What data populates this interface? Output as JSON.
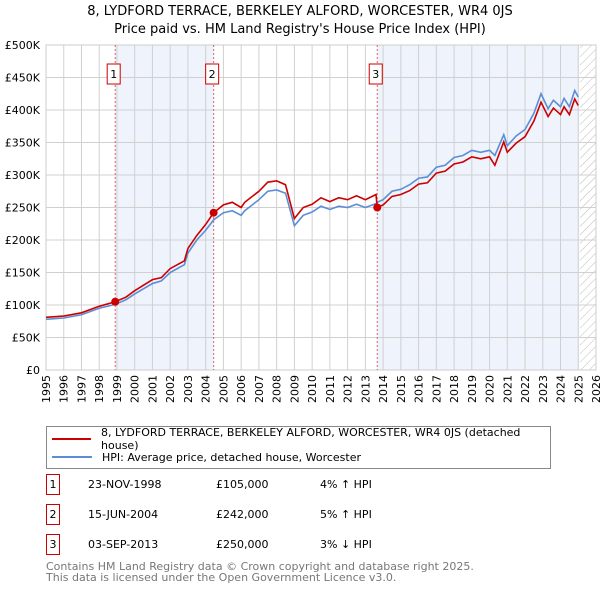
{
  "chart_data": {
    "type": "line",
    "title": "8, LYDFORD TERRACE, BERKELEY ALFORD, WORCESTER, WR4 0JS",
    "subtitle": "Price paid vs. HM Land Registry's House Price Index (HPI)",
    "xlim": [
      1995,
      2026
    ],
    "ylim": [
      0,
      500000
    ],
    "grid": true,
    "x_ticks": [
      "1995",
      "1996",
      "1997",
      "1998",
      "1999",
      "2000",
      "2001",
      "2002",
      "2003",
      "2004",
      "2005",
      "2006",
      "2007",
      "2008",
      "2009",
      "2010",
      "2011",
      "2012",
      "2013",
      "2014",
      "2015",
      "2016",
      "2017",
      "2018",
      "2019",
      "2020",
      "2021",
      "2022",
      "2023",
      "2024",
      "2025",
      "2026"
    ],
    "y_ticks": [
      {
        "v": 0,
        "label": "£0"
      },
      {
        "v": 50000,
        "label": "£50K"
      },
      {
        "v": 100000,
        "label": "£100K"
      },
      {
        "v": 150000,
        "label": "£150K"
      },
      {
        "v": 200000,
        "label": "£200K"
      },
      {
        "v": 250000,
        "label": "£250K"
      },
      {
        "v": 300000,
        "label": "£300K"
      },
      {
        "v": 350000,
        "label": "£350K"
      },
      {
        "v": 400000,
        "label": "£400K"
      },
      {
        "v": 450000,
        "label": "£450K"
      },
      {
        "v": 500000,
        "label": "£500K"
      }
    ],
    "shaded_ranges": [
      [
        1998.9,
        2004.45
      ],
      [
        2013.67,
        2025.05
      ]
    ],
    "hatched_from": 2025.1,
    "series": [
      {
        "name": "8, LYDFORD TERRACE, BERKELEY ALFORD, WORCESTER, WR4 0JS (detached house)",
        "color": "#cc0000",
        "points": [
          [
            1995,
            81
          ],
          [
            1996,
            83
          ],
          [
            1997,
            88
          ],
          [
            1998,
            98
          ],
          [
            1998.9,
            105
          ],
          [
            1999.5,
            112
          ],
          [
            2000,
            122
          ],
          [
            2001,
            139
          ],
          [
            2001.5,
            142
          ],
          [
            2002,
            156
          ],
          [
            2002.8,
            168
          ],
          [
            2003,
            187
          ],
          [
            2003.5,
            207
          ],
          [
            2004,
            224
          ],
          [
            2004.45,
            242
          ],
          [
            2005,
            254
          ],
          [
            2005.5,
            258
          ],
          [
            2006,
            250
          ],
          [
            2006.2,
            258
          ],
          [
            2007,
            275
          ],
          [
            2007.5,
            289
          ],
          [
            2008,
            291
          ],
          [
            2008.5,
            285
          ],
          [
            2009,
            233
          ],
          [
            2009.5,
            250
          ],
          [
            2010,
            255
          ],
          [
            2010.5,
            265
          ],
          [
            2011,
            259
          ],
          [
            2011.5,
            265
          ],
          [
            2012,
            262
          ],
          [
            2012.5,
            268
          ],
          [
            2013,
            262
          ],
          [
            2013.6,
            270
          ],
          [
            2013.67,
            250
          ],
          [
            2014,
            254
          ],
          [
            2014.5,
            267
          ],
          [
            2015,
            270
          ],
          [
            2015.5,
            276
          ],
          [
            2016,
            286
          ],
          [
            2016.5,
            288
          ],
          [
            2017,
            303
          ],
          [
            2017.5,
            306
          ],
          [
            2018,
            317
          ],
          [
            2018.5,
            320
          ],
          [
            2019,
            328
          ],
          [
            2019.5,
            325
          ],
          [
            2020,
            328
          ],
          [
            2020.3,
            315
          ],
          [
            2020.8,
            351
          ],
          [
            2021,
            335
          ],
          [
            2021.5,
            349
          ],
          [
            2022,
            359
          ],
          [
            2022.5,
            383
          ],
          [
            2022.9,
            412
          ],
          [
            2023.3,
            390
          ],
          [
            2023.6,
            403
          ],
          [
            2024,
            393
          ],
          [
            2024.2,
            405
          ],
          [
            2024.5,
            393
          ],
          [
            2024.8,
            417
          ],
          [
            2025,
            407
          ]
        ]
      },
      {
        "name": "HPI: Average price, detached house, Worcester",
        "color": "#5b8ed6",
        "points": [
          [
            1995,
            78
          ],
          [
            1996,
            80
          ],
          [
            1997,
            85
          ],
          [
            1998,
            95
          ],
          [
            1998.9,
            101
          ],
          [
            1999.5,
            108
          ],
          [
            2000,
            117
          ],
          [
            2001,
            133
          ],
          [
            2001.5,
            137
          ],
          [
            2002,
            150
          ],
          [
            2002.8,
            162
          ],
          [
            2003,
            180
          ],
          [
            2003.5,
            200
          ],
          [
            2004,
            215
          ],
          [
            2004.45,
            231
          ],
          [
            2005,
            242
          ],
          [
            2005.5,
            245
          ],
          [
            2006,
            238
          ],
          [
            2006.2,
            245
          ],
          [
            2007,
            262
          ],
          [
            2007.5,
            275
          ],
          [
            2008,
            277
          ],
          [
            2008.5,
            272
          ],
          [
            2009,
            222
          ],
          [
            2009.5,
            238
          ],
          [
            2010,
            243
          ],
          [
            2010.5,
            252
          ],
          [
            2011,
            247
          ],
          [
            2011.5,
            252
          ],
          [
            2012,
            250
          ],
          [
            2012.5,
            255
          ],
          [
            2013,
            250
          ],
          [
            2013.6,
            256
          ],
          [
            2013.67,
            258
          ],
          [
            2014,
            262
          ],
          [
            2014.5,
            275
          ],
          [
            2015,
            278
          ],
          [
            2015.5,
            285
          ],
          [
            2016,
            295
          ],
          [
            2016.5,
            297
          ],
          [
            2017,
            312
          ],
          [
            2017.5,
            315
          ],
          [
            2018,
            327
          ],
          [
            2018.5,
            330
          ],
          [
            2019,
            338
          ],
          [
            2019.5,
            335
          ],
          [
            2020,
            338
          ],
          [
            2020.3,
            330
          ],
          [
            2020.8,
            362
          ],
          [
            2021,
            345
          ],
          [
            2021.5,
            360
          ],
          [
            2022,
            370
          ],
          [
            2022.5,
            395
          ],
          [
            2022.9,
            425
          ],
          [
            2023.3,
            402
          ],
          [
            2023.6,
            415
          ],
          [
            2024,
            405
          ],
          [
            2024.2,
            418
          ],
          [
            2024.5,
            405
          ],
          [
            2024.8,
            430
          ],
          [
            2025,
            420
          ]
        ]
      }
    ],
    "y_unit_multiplier": 1000,
    "sales": [
      {
        "n": "1",
        "x": 1998.9,
        "price": 105000,
        "date": "23-NOV-1998",
        "price_label": "£105,000",
        "hpi": "4% ↑ HPI"
      },
      {
        "n": "2",
        "x": 2004.45,
        "price": 242000,
        "date": "15-JUN-2004",
        "price_label": "£242,000",
        "hpi": "5% ↑ HPI"
      },
      {
        "n": "3",
        "x": 2013.67,
        "price": 250000,
        "date": "03-SEP-2013",
        "price_label": "£250,000",
        "hpi": "3% ↓ HPI"
      }
    ]
  },
  "footer": {
    "line1": "Contains HM Land Registry data © Crown copyright and database right 2025.",
    "line2": "This data is licensed under the Open Government Licence v3.0."
  }
}
